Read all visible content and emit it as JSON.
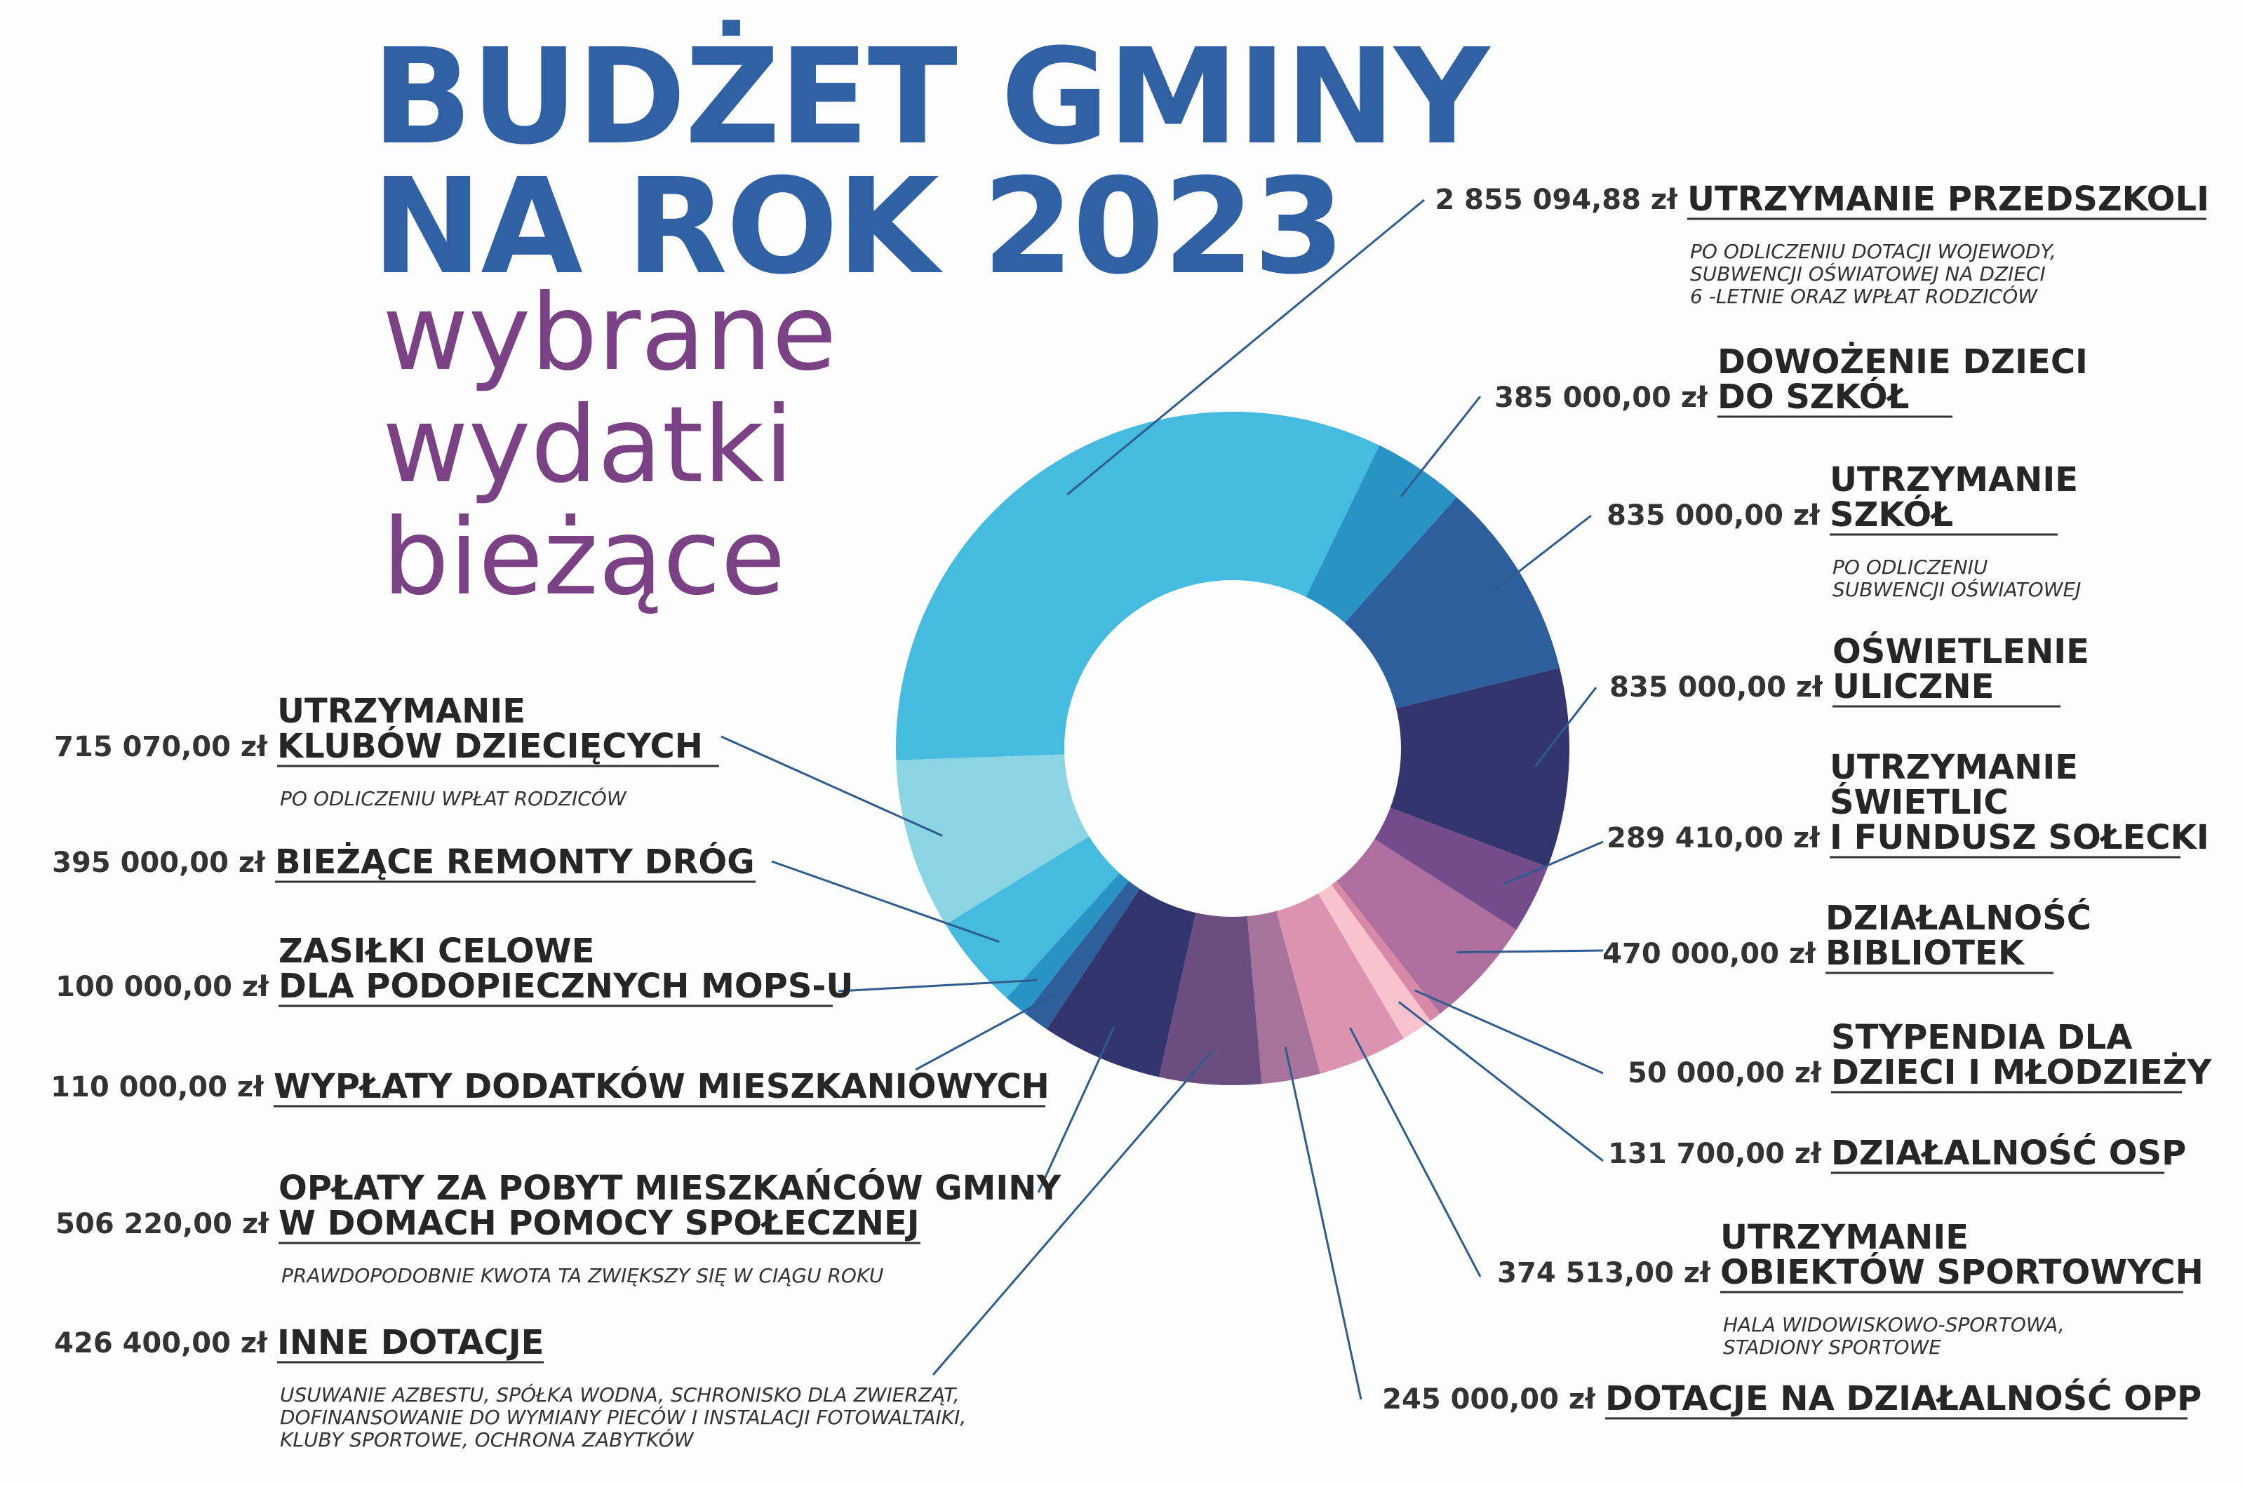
{
  "title": {
    "line1": "BUDŻET GMINY",
    "line2": "NA ROK 2023",
    "sub1": "wybrane",
    "sub2": "wydatki",
    "sub3": "bieżące"
  },
  "chart_data": {
    "type": "pie",
    "title": "BUDŻET GMINY NA ROK 2023 – wybrane wydatki bieżące",
    "currency": "zł",
    "slices": [
      {
        "amount": "2 855 094,88 zł",
        "value": 2855094.88,
        "label": [
          "UTRZYMANIE PRZEDSZKOLI"
        ],
        "note": [
          "PO ODLICZENIU DOTACJI WOJEWODY,",
          " SUBWENCJI OŚWIATOWEJ NA DZIECI",
          "6 -LETNIE ORAZ WPŁAT RODZICÓW"
        ],
        "color": "#45bbe0"
      },
      {
        "amount": "385 000,00 zł",
        "value": 385000,
        "label": [
          "DOWOŻENIE DZIECI",
          "DO SZKÓŁ"
        ],
        "note": [],
        "color": "#2a93c6"
      },
      {
        "amount": "835 000,00 zł",
        "value": 835000,
        "label": [
          "UTRZYMANIE",
          "SZKÓŁ"
        ],
        "note": [
          "PO ODLICZENIU",
          "SUBWENCJI OŚWIATOWEJ"
        ],
        "color": "#2d5f9c"
      },
      {
        "amount": "835 000,00 zł",
        "value": 835000,
        "label": [
          "OŚWIETLENIE",
          "ULICZNE"
        ],
        "note": [],
        "color": "#33356e"
      },
      {
        "amount": "289 410,00 zł",
        "value": 289410,
        "label": [
          "UTRZYMANIE",
          "ŚWIETLIC",
          "I FUNDUSZ SOŁECKI"
        ],
        "note": [],
        "color": "#744c8c"
      },
      {
        "amount": "470 000,00 zł",
        "value": 470000,
        "label": [
          "DZIAŁALNOŚĆ",
          "BIBLIOTEK"
        ],
        "note": [],
        "color": "#ae6f9f"
      },
      {
        "amount": "50 000,00 zł",
        "value": 50000,
        "label": [
          "STYPENDIA DLA",
          "DZIECI I MŁODZIEŻY"
        ],
        "note": [],
        "color": "#d889a8"
      },
      {
        "amount": "131 700,00 zł",
        "value": 131700,
        "label": [
          "DZIAŁALNOŚĆ OSP"
        ],
        "note": [],
        "color": "#f8c3cc"
      },
      {
        "amount": "374 513,00 zł",
        "value": 374513,
        "label": [
          "UTRZYMANIE",
          "OBIEKTÓW SPORTOWYCH"
        ],
        "note": [
          "HALA WIDOWISKOWO-SPORTOWA,",
          "STADIONY SPORTOWE"
        ],
        "color": "#dc93b0"
      },
      {
        "amount": "245 000,00 zł",
        "value": 245000,
        "label": [
          "DOTACJE NA DZIAŁALNOŚĆ OPP"
        ],
        "note": [],
        "color": "#a7739a"
      },
      {
        "amount": "426 400,00 zł",
        "value": 426400,
        "label": [
          "INNE DOTACJE"
        ],
        "note": [
          "USUWANIE AZBESTU, SPÓŁKA WODNA, SCHRONISKO DLA ZWIERZĄT,",
          "DOFINANSOWANIE DO WYMIANY PIECÓW I INSTALACJI FOTOWALTAIKI,",
          "KLUBY SPORTOWE, OCHRONA ZABYTKÓW"
        ],
        "color": "#6b4d80"
      },
      {
        "amount": "506 220,00 zł",
        "value": 506220,
        "label": [
          "OPŁATY ZA POBYT MIESZKAŃCÓW GMINY",
          "W DOMACH POMOCY SPOŁECZNEJ"
        ],
        "note": [
          "PRAWDOPODOBNIE KWOTA TA ZWIĘKSZY SIĘ W CIĄGU ROKU"
        ],
        "color": "#33356e"
      },
      {
        "amount": "110 000,00 zł",
        "value": 110000,
        "label": [
          "WYPŁATY DODATKÓW MIESZKANIOWYCH"
        ],
        "note": [],
        "color": "#2f5f9b"
      },
      {
        "amount": "100 000,00 zł",
        "value": 100000,
        "label": [
          "ZASIŁKI CELOWE",
          "DLA PODOPIECZNYCH MOPS-U"
        ],
        "note": [],
        "color": "#2a93c6"
      },
      {
        "amount": "395 000,00 zł",
        "value": 395000,
        "label": [
          "BIEŻĄCE REMONTY DRÓG"
        ],
        "note": [],
        "color": "#45bbe0"
      },
      {
        "amount": "715 070,00 zł",
        "value": 715070,
        "label": [
          "UTRZYMANIE",
          "KLUBÓW DZIECIĘCYCH"
        ],
        "note": [
          "PO ODLICZENIU WPŁAT RODZICÓW"
        ],
        "color": "#8ad4e3"
      }
    ]
  }
}
